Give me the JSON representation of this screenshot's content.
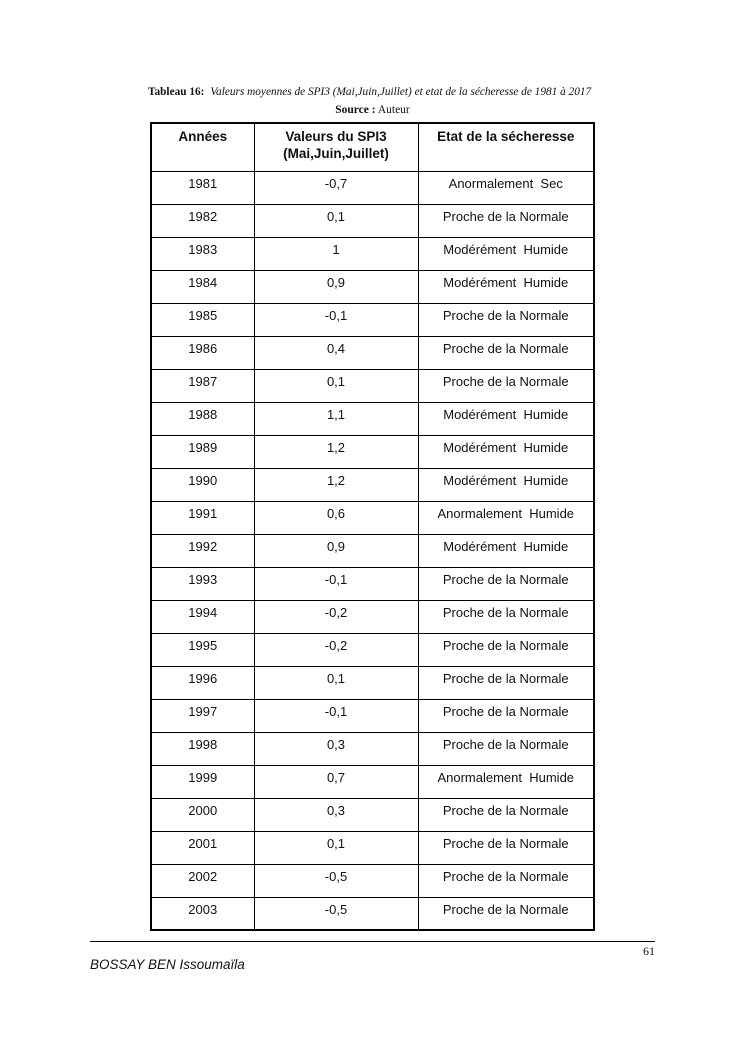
{
  "caption": {
    "label": "Tableau 16:",
    "text": "Valeurs moyennes de SPI3 (Mai,Juin,Juillet) et etat de la sécheresse de 1981 à 2017",
    "source_label": "Source :",
    "source_value": "Auteur"
  },
  "table": {
    "headers": [
      "Années",
      "Valeurs du SPI3\n(Mai,Juin,Juillet)",
      "Etat de la sécheresse"
    ],
    "column_names": [
      "year-cell",
      "spi3-value-cell",
      "drought-state-cell"
    ],
    "rows": [
      [
        "1981",
        "-0,7",
        "Anormalement  Sec"
      ],
      [
        "1982",
        "0,1",
        "Proche de la Normale"
      ],
      [
        "1983",
        "1",
        "Modérément  Humide"
      ],
      [
        "1984",
        "0,9",
        "Modérément  Humide"
      ],
      [
        "1985",
        "-0,1",
        "Proche de la Normale"
      ],
      [
        "1986",
        "0,4",
        "Proche de la Normale"
      ],
      [
        "1987",
        "0,1",
        "Proche de la Normale"
      ],
      [
        "1988",
        "1,1",
        "Modérément  Humide"
      ],
      [
        "1989",
        "1,2",
        "Modérément  Humide"
      ],
      [
        "1990",
        "1,2",
        "Modérément  Humide"
      ],
      [
        "1991",
        "0,6",
        "Anormalement  Humide"
      ],
      [
        "1992",
        "0,9",
        "Modérément  Humide"
      ],
      [
        "1993",
        "-0,1",
        "Proche de la Normale"
      ],
      [
        "1994",
        "-0,2",
        "Proche de la Normale"
      ],
      [
        "1995",
        "-0,2",
        "Proche de la Normale"
      ],
      [
        "1996",
        "0,1",
        "Proche de la Normale"
      ],
      [
        "1997",
        "-0,1",
        "Proche de la Normale"
      ],
      [
        "1998",
        "0,3",
        "Proche de la Normale"
      ],
      [
        "1999",
        "0,7",
        "Anormalement  Humide"
      ],
      [
        "2000",
        "0,3",
        "Proche de la Normale"
      ],
      [
        "2001",
        "0,1",
        "Proche de la Normale"
      ],
      [
        "2002",
        "-0,5",
        "Proche de la Normale"
      ],
      [
        "2003",
        "-0,5",
        "Proche de la Normale"
      ]
    ]
  },
  "footer": {
    "page_number": "61",
    "author": "BOSSAY BEN Issoumaïla"
  }
}
